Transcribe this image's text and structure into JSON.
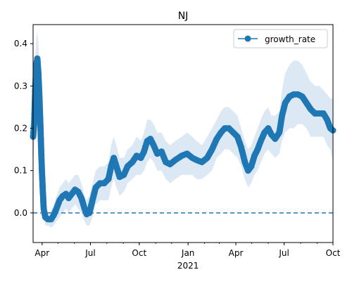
{
  "chart_data": {
    "type": "line",
    "title": "NJ",
    "xlabel": "",
    "ylabel": "",
    "x_axis": {
      "type": "date",
      "range": [
        "2020-03-15",
        "2021-10-01"
      ],
      "major_ticks": [
        {
          "date": "2020-04-01",
          "label": "Apr"
        },
        {
          "date": "2020-07-01",
          "label": "Jul"
        },
        {
          "date": "2020-10-01",
          "label": "Oct"
        },
        {
          "date": "2021-01-01",
          "label": "Jan"
        },
        {
          "date": "2021-04-01",
          "label": "Apr"
        },
        {
          "date": "2021-07-01",
          "label": "Jul"
        },
        {
          "date": "2021-10-01",
          "label": "Oct"
        }
      ],
      "year_label": {
        "date": "2021-01-01",
        "label": "2021"
      }
    },
    "ylim": [
      -0.07,
      0.445
    ],
    "yticks": [
      0.0,
      0.1,
      0.2,
      0.3,
      0.4
    ],
    "ytick_labels": [
      "0.0",
      "0.1",
      "0.2",
      "0.3",
      "0.4"
    ],
    "legend": {
      "position": "top-right",
      "entries": [
        "growth_rate"
      ]
    },
    "reference_line": {
      "y": 0.0,
      "style": "dashed"
    },
    "series": [
      {
        "name": "growth_rate",
        "color": "#1f77b4",
        "marker": "circle",
        "band_color": "#dce9f5",
        "points": [
          [
            "2020-03-15",
            0.18,
            0.12,
            0.24
          ],
          [
            "2020-03-17",
            0.21,
            0.15,
            0.27
          ],
          [
            "2020-03-19",
            0.29,
            0.22,
            0.36
          ],
          [
            "2020-03-21",
            0.35,
            0.28,
            0.41
          ],
          [
            "2020-03-23",
            0.365,
            0.3,
            0.43
          ],
          [
            "2020-03-25",
            0.33,
            0.27,
            0.4
          ],
          [
            "2020-03-27",
            0.27,
            0.21,
            0.33
          ],
          [
            "2020-03-29",
            0.2,
            0.15,
            0.26
          ],
          [
            "2020-03-31",
            0.12,
            0.08,
            0.17
          ],
          [
            "2020-04-02",
            0.06,
            0.03,
            0.09
          ],
          [
            "2020-04-04",
            0.01,
            -0.01,
            0.04
          ],
          [
            "2020-04-07",
            -0.01,
            -0.03,
            0.01
          ],
          [
            "2020-04-12",
            -0.015,
            -0.03,
            0.0
          ],
          [
            "2020-04-18",
            -0.015,
            -0.035,
            0.005
          ],
          [
            "2020-04-23",
            -0.005,
            -0.03,
            0.02
          ],
          [
            "2020-04-28",
            0.01,
            -0.02,
            0.04
          ],
          [
            "2020-05-04",
            0.03,
            -0.01,
            0.06
          ],
          [
            "2020-05-10",
            0.04,
            0.0,
            0.07
          ],
          [
            "2020-05-16",
            0.045,
            0.01,
            0.08
          ],
          [
            "2020-05-21",
            0.035,
            0.0,
            0.07
          ],
          [
            "2020-05-27",
            0.045,
            0.01,
            0.08
          ],
          [
            "2020-06-02",
            0.055,
            0.02,
            0.09
          ],
          [
            "2020-06-08",
            0.05,
            0.01,
            0.09
          ],
          [
            "2020-06-14",
            0.035,
            0.0,
            0.07
          ],
          [
            "2020-06-20",
            0.01,
            -0.02,
            0.04
          ],
          [
            "2020-06-24",
            -0.003,
            -0.03,
            0.03
          ],
          [
            "2020-06-29",
            0.0,
            -0.03,
            0.04
          ],
          [
            "2020-07-05",
            0.03,
            -0.01,
            0.07
          ],
          [
            "2020-07-11",
            0.06,
            0.02,
            0.1
          ],
          [
            "2020-07-19",
            0.07,
            0.03,
            0.11
          ],
          [
            "2020-07-27",
            0.07,
            0.03,
            0.11
          ],
          [
            "2020-08-04",
            0.08,
            0.03,
            0.12
          ],
          [
            "2020-08-09",
            0.11,
            0.06,
            0.16
          ],
          [
            "2020-08-14",
            0.13,
            0.08,
            0.18
          ],
          [
            "2020-08-19",
            0.11,
            0.06,
            0.16
          ],
          [
            "2020-08-25",
            0.085,
            0.04,
            0.13
          ],
          [
            "2020-09-02",
            0.09,
            0.05,
            0.13
          ],
          [
            "2020-09-09",
            0.11,
            0.07,
            0.15
          ],
          [
            "2020-09-18",
            0.12,
            0.08,
            0.16
          ],
          [
            "2020-09-26",
            0.135,
            0.09,
            0.18
          ],
          [
            "2020-10-04",
            0.13,
            0.09,
            0.17
          ],
          [
            "2020-10-10",
            0.145,
            0.1,
            0.19
          ],
          [
            "2020-10-16",
            0.17,
            0.12,
            0.22
          ],
          [
            "2020-10-22",
            0.175,
            0.13,
            0.22
          ],
          [
            "2020-10-28",
            0.16,
            0.12,
            0.21
          ],
          [
            "2020-11-04",
            0.14,
            0.1,
            0.19
          ],
          [
            "2020-11-12",
            0.145,
            0.1,
            0.19
          ],
          [
            "2020-11-20",
            0.12,
            0.08,
            0.17
          ],
          [
            "2020-11-28",
            0.115,
            0.07,
            0.16
          ],
          [
            "2020-12-08",
            0.125,
            0.08,
            0.17
          ],
          [
            "2020-12-20",
            0.135,
            0.09,
            0.18
          ],
          [
            "2020-12-30",
            0.14,
            0.09,
            0.19
          ],
          [
            "2021-01-09",
            0.13,
            0.09,
            0.18
          ],
          [
            "2021-01-17",
            0.125,
            0.08,
            0.17
          ],
          [
            "2021-01-27",
            0.12,
            0.08,
            0.16
          ],
          [
            "2021-02-06",
            0.13,
            0.09,
            0.18
          ],
          [
            "2021-02-15",
            0.15,
            0.1,
            0.2
          ],
          [
            "2021-02-24",
            0.175,
            0.13,
            0.22
          ],
          [
            "2021-03-04",
            0.19,
            0.14,
            0.24
          ],
          [
            "2021-03-11",
            0.2,
            0.15,
            0.25
          ],
          [
            "2021-03-19",
            0.2,
            0.15,
            0.25
          ],
          [
            "2021-03-27",
            0.19,
            0.14,
            0.24
          ],
          [
            "2021-04-04",
            0.18,
            0.13,
            0.23
          ],
          [
            "2021-04-11",
            0.155,
            0.11,
            0.2
          ],
          [
            "2021-04-18",
            0.12,
            0.08,
            0.17
          ],
          [
            "2021-04-24",
            0.1,
            0.06,
            0.15
          ],
          [
            "2021-04-30",
            0.11,
            0.07,
            0.16
          ],
          [
            "2021-05-06",
            0.135,
            0.09,
            0.18
          ],
          [
            "2021-05-12",
            0.15,
            0.1,
            0.2
          ],
          [
            "2021-05-18",
            0.17,
            0.12,
            0.22
          ],
          [
            "2021-05-25",
            0.19,
            0.14,
            0.24
          ],
          [
            "2021-06-01",
            0.2,
            0.15,
            0.25
          ],
          [
            "2021-06-07",
            0.185,
            0.14,
            0.23
          ],
          [
            "2021-06-14",
            0.175,
            0.13,
            0.23
          ],
          [
            "2021-06-22",
            0.19,
            0.14,
            0.24
          ],
          [
            "2021-06-27",
            0.23,
            0.17,
            0.29
          ],
          [
            "2021-07-03",
            0.26,
            0.19,
            0.33
          ],
          [
            "2021-07-11",
            0.275,
            0.2,
            0.35
          ],
          [
            "2021-07-19",
            0.28,
            0.2,
            0.36
          ],
          [
            "2021-07-27",
            0.28,
            0.21,
            0.36
          ],
          [
            "2021-08-04",
            0.275,
            0.21,
            0.35
          ],
          [
            "2021-08-12",
            0.26,
            0.2,
            0.33
          ],
          [
            "2021-08-20",
            0.245,
            0.18,
            0.31
          ],
          [
            "2021-08-28",
            0.235,
            0.18,
            0.3
          ],
          [
            "2021-09-05",
            0.235,
            0.18,
            0.3
          ],
          [
            "2021-09-13",
            0.235,
            0.18,
            0.29
          ],
          [
            "2021-09-20",
            0.22,
            0.16,
            0.28
          ],
          [
            "2021-09-26",
            0.2,
            0.15,
            0.27
          ],
          [
            "2021-10-01",
            0.195,
            0.12,
            0.27
          ]
        ]
      }
    ]
  }
}
